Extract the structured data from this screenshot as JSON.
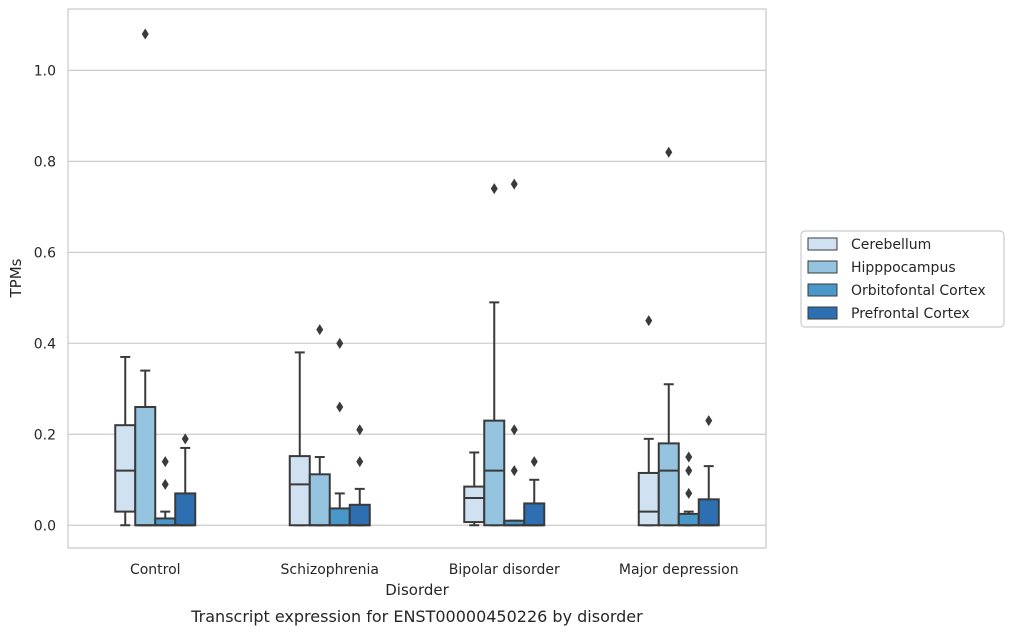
{
  "chart_data": {
    "type": "boxplot",
    "caption": "Transcript expression for ENST00000450226 by disorder",
    "xlabel": "Disorder",
    "ylabel": "TPMs",
    "ylim": [
      -0.05,
      1.135
    ],
    "yticks": [
      0.0,
      0.2,
      0.4,
      0.6,
      0.8,
      1.0
    ],
    "ytick_labels": [
      "0.0",
      "0.2",
      "0.4",
      "0.6",
      "0.8",
      "1.0"
    ],
    "grid": "horizontal",
    "legend_position": "right",
    "categories": [
      "Control",
      "Schizophrenia",
      "Bipolar disorder",
      "Major depression"
    ],
    "series": [
      {
        "name": "Cerebellum",
        "color": "#d0e1f2",
        "boxes": [
          {
            "q1": 0.03,
            "median": 0.12,
            "q3": 0.22,
            "whisker_low": 0.0,
            "whisker_high": 0.37,
            "outliers": []
          },
          {
            "q1": 0.0,
            "median": 0.09,
            "q3": 0.152,
            "whisker_low": 0.0,
            "whisker_high": 0.38,
            "outliers": []
          },
          {
            "q1": 0.007,
            "median": 0.06,
            "q3": 0.085,
            "whisker_low": 0.0,
            "whisker_high": 0.16,
            "outliers": []
          },
          {
            "q1": 0.0,
            "median": 0.03,
            "q3": 0.115,
            "whisker_low": 0.0,
            "whisker_high": 0.19,
            "outliers": [
              0.45
            ]
          }
        ]
      },
      {
        "name": "Hipppocampus",
        "color": "#94c4df",
        "boxes": [
          {
            "q1": 0.0,
            "median": 0.0,
            "q3": 0.26,
            "whisker_low": 0.0,
            "whisker_high": 0.34,
            "outliers": [
              1.08
            ]
          },
          {
            "q1": 0.0,
            "median": 0.0,
            "q3": 0.112,
            "whisker_low": 0.0,
            "whisker_high": 0.15,
            "outliers": [
              0.43
            ]
          },
          {
            "q1": 0.0,
            "median": 0.12,
            "q3": 0.23,
            "whisker_low": 0.0,
            "whisker_high": 0.49,
            "outliers": [
              0.74
            ]
          },
          {
            "q1": 0.0,
            "median": 0.12,
            "q3": 0.18,
            "whisker_low": 0.0,
            "whisker_high": 0.31,
            "outliers": [
              0.82
            ]
          }
        ]
      },
      {
        "name": "Orbitofontal Cortex",
        "color": "#4a98c9",
        "boxes": [
          {
            "q1": 0.0,
            "median": 0.0,
            "q3": 0.015,
            "whisker_low": 0.0,
            "whisker_high": 0.03,
            "outliers": [
              0.14,
              0.09
            ]
          },
          {
            "q1": 0.0,
            "median": 0.0,
            "q3": 0.037,
            "whisker_low": 0.0,
            "whisker_high": 0.07,
            "outliers": [
              0.4,
              0.26
            ]
          },
          {
            "q1": 0.0,
            "median": 0.0,
            "q3": 0.01,
            "whisker_low": 0.0,
            "whisker_high": 0.01,
            "outliers": [
              0.75,
              0.21,
              0.12
            ]
          },
          {
            "q1": 0.0,
            "median": 0.0,
            "q3": 0.025,
            "whisker_low": 0.0,
            "whisker_high": 0.03,
            "outliers": [
              0.15,
              0.12,
              0.07
            ]
          }
        ]
      },
      {
        "name": "Prefrontal Cortex",
        "color": "#2d6fb0",
        "boxes": [
          {
            "q1": 0.0,
            "median": 0.0,
            "q3": 0.07,
            "whisker_low": 0.0,
            "whisker_high": 0.17,
            "outliers": [
              0.19
            ]
          },
          {
            "q1": 0.0,
            "median": 0.0,
            "q3": 0.045,
            "whisker_low": 0.0,
            "whisker_high": 0.08,
            "outliers": [
              0.21,
              0.14
            ]
          },
          {
            "q1": 0.0,
            "median": 0.0,
            "q3": 0.048,
            "whisker_low": 0.0,
            "whisker_high": 0.1,
            "outliers": [
              0.14
            ]
          },
          {
            "q1": 0.0,
            "median": 0.0,
            "q3": 0.057,
            "whisker_low": 0.0,
            "whisker_high": 0.13,
            "outliers": [
              0.23
            ]
          }
        ]
      }
    ]
  }
}
